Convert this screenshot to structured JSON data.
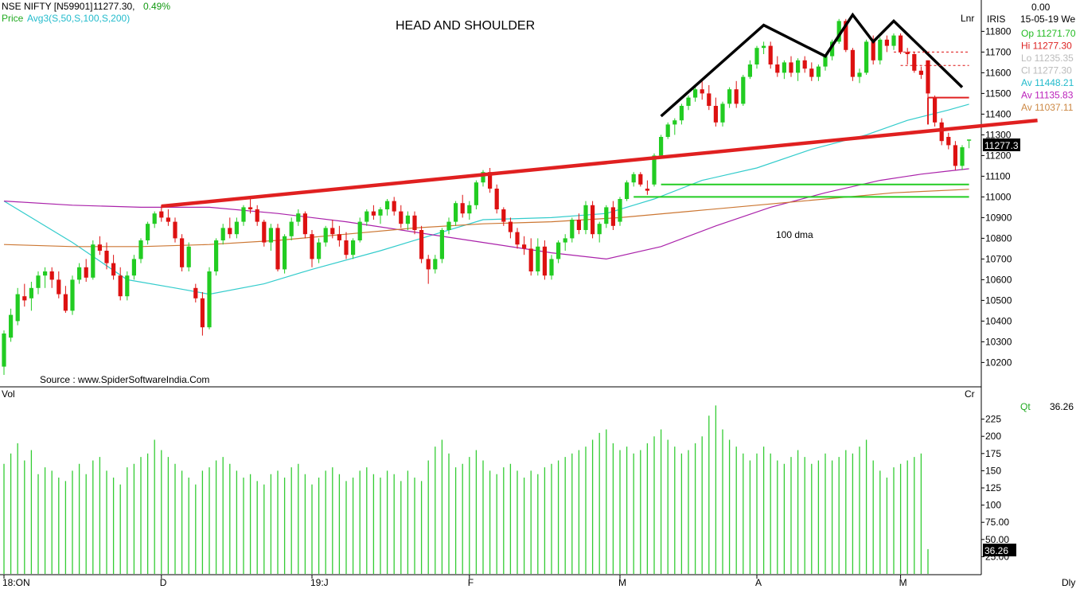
{
  "header": {
    "symbol": "NSE NIFTY [N59901]",
    "last": "11277.30,",
    "change": "0.49%",
    "price_label": "Price",
    "avg_label": "Avg3(S,50,S,100,S,200)",
    "title": "HEAD AND SHOULDER",
    "lnr": "Lnr",
    "source": "Source : www.SpiderSoftwareIndia.Com",
    "dma_note": "100 dma"
  },
  "info_panel": {
    "top_value": "0.00",
    "iris": "IRIS",
    "date": "15-05-19 We",
    "rows": [
      {
        "label": "Op 11271.70",
        "color": "#22bb22"
      },
      {
        "label": "Hi 11277.30",
        "color": "#dd2222"
      },
      {
        "label": "Lo 11235.35",
        "color": "#bbbbbb"
      },
      {
        "label": "Cl 11277.30",
        "color": "#bbbbbb"
      },
      {
        "label": "Av 11448.21",
        "color": "#22bbcc"
      },
      {
        "label": "Av 11135.83",
        "color": "#bb22bb"
      },
      {
        "label": "Av 11037.11",
        "color": "#cc8844"
      }
    ],
    "price_tag": "11277.3"
  },
  "volume_panel": {
    "vol_label": "Vol",
    "cr_label": "Cr",
    "qt_label": "Qt",
    "qt_value": "36.26",
    "vol_tag": "36.26"
  },
  "x_axis": {
    "labels": [
      {
        "text": "18:ON",
        "idx": 0
      },
      {
        "text": "D",
        "idx": 23
      },
      {
        "text": "19:J",
        "idx": 45
      },
      {
        "text": "F",
        "idx": 68
      },
      {
        "text": "M",
        "idx": 90
      },
      {
        "text": "A",
        "idx": 110
      },
      {
        "text": "M",
        "idx": 131
      }
    ],
    "dly": "Dly"
  },
  "colors": {
    "up": "#22cc22",
    "down": "#dd1111",
    "ma50": "#33cccc",
    "ma100": "#aa22aa",
    "ma200": "#cc7733",
    "trendline": "#e02020",
    "pattern": "#000000",
    "support": "#22cc22",
    "volume": "#33cc33"
  },
  "chart_data": {
    "type": "candlestick",
    "title": "HEAD AND SHOULDER",
    "y_ticks": [
      10200,
      10300,
      10400,
      10500,
      10600,
      10700,
      10800,
      10900,
      11000,
      11100,
      11200,
      11300,
      11400,
      11500,
      11600,
      11700,
      11800
    ],
    "ylim": [
      10090,
      11940
    ],
    "series_ohlc": [
      [
        10180,
        10355,
        10140,
        10340
      ],
      [
        10320,
        10460,
        10300,
        10430
      ],
      [
        10400,
        10560,
        10380,
        10530
      ],
      [
        10520,
        10580,
        10470,
        10500
      ],
      [
        10510,
        10590,
        10450,
        10560
      ],
      [
        10560,
        10640,
        10530,
        10620
      ],
      [
        10620,
        10660,
        10560,
        10640
      ],
      [
        10640,
        10660,
        10560,
        10600
      ],
      [
        10600,
        10640,
        10510,
        10530
      ],
      [
        10530,
        10570,
        10440,
        10450
      ],
      [
        10450,
        10620,
        10430,
        10600
      ],
      [
        10600,
        10680,
        10580,
        10660
      ],
      [
        10660,
        10700,
        10590,
        10610
      ],
      [
        10610,
        10790,
        10600,
        10770
      ],
      [
        10770,
        10810,
        10720,
        10740
      ],
      [
        10740,
        10780,
        10650,
        10680
      ],
      [
        10680,
        10720,
        10600,
        10620
      ],
      [
        10620,
        10660,
        10500,
        10520
      ],
      [
        10520,
        10640,
        10500,
        10620
      ],
      [
        10620,
        10720,
        10600,
        10700
      ],
      [
        10700,
        10800,
        10680,
        10790
      ],
      [
        10790,
        10880,
        10770,
        10870
      ],
      [
        10870,
        10930,
        10850,
        10920
      ],
      [
        10930,
        10960,
        10880,
        10900
      ],
      [
        10900,
        10940,
        10860,
        10880
      ],
      [
        10880,
        10900,
        10780,
        10800
      ],
      [
        10800,
        10820,
        10640,
        10660
      ],
      [
        10660,
        10780,
        10640,
        10760
      ],
      [
        10560,
        10580,
        10490,
        10510
      ],
      [
        10510,
        10540,
        10330,
        10370
      ],
      [
        10370,
        10660,
        10360,
        10640
      ],
      [
        10640,
        10800,
        10620,
        10790
      ],
      [
        10790,
        10870,
        10770,
        10850
      ],
      [
        10850,
        10900,
        10800,
        10820
      ],
      [
        10820,
        10900,
        10800,
        10880
      ],
      [
        10880,
        10960,
        10860,
        10950
      ],
      [
        10950,
        10990,
        10920,
        10940
      ],
      [
        10940,
        10960,
        10860,
        10880
      ],
      [
        10880,
        10890,
        10760,
        10780
      ],
      [
        10780,
        10870,
        10740,
        10850
      ],
      [
        10850,
        10870,
        10640,
        10650
      ],
      [
        10650,
        10820,
        10630,
        10810
      ],
      [
        10810,
        10900,
        10790,
        10880
      ],
      [
        10880,
        10940,
        10860,
        10920
      ],
      [
        10920,
        10930,
        10800,
        10820
      ],
      [
        10820,
        10840,
        10660,
        10700
      ],
      [
        10700,
        10800,
        10680,
        10780
      ],
      [
        10780,
        10860,
        10760,
        10850
      ],
      [
        10850,
        10890,
        10800,
        10820
      ],
      [
        10820,
        10860,
        10760,
        10790
      ],
      [
        10790,
        10830,
        10700,
        10720
      ],
      [
        10720,
        10800,
        10700,
        10790
      ],
      [
        10790,
        10900,
        10780,
        10880
      ],
      [
        10880,
        10940,
        10860,
        10930
      ],
      [
        10930,
        10960,
        10890,
        10910
      ],
      [
        10910,
        10950,
        10870,
        10940
      ],
      [
        10940,
        10990,
        10910,
        10980
      ],
      [
        10980,
        11000,
        10910,
        10930
      ],
      [
        10930,
        10960,
        10850,
        10870
      ],
      [
        10870,
        10930,
        10840,
        10910
      ],
      [
        10910,
        10930,
        10820,
        10840
      ],
      [
        10840,
        10860,
        10680,
        10700
      ],
      [
        10700,
        10720,
        10580,
        10650
      ],
      [
        10650,
        10720,
        10630,
        10700
      ],
      [
        10700,
        10850,
        10680,
        10840
      ],
      [
        10840,
        10900,
        10820,
        10880
      ],
      [
        10880,
        10980,
        10860,
        10970
      ],
      [
        10970,
        11010,
        10900,
        10920
      ],
      [
        10920,
        10980,
        10890,
        10960
      ],
      [
        10960,
        11080,
        10940,
        11070
      ],
      [
        11070,
        11130,
        11050,
        11120
      ],
      [
        11120,
        11140,
        11020,
        11040
      ],
      [
        11040,
        11060,
        10920,
        10940
      ],
      [
        10940,
        10950,
        10860,
        10880
      ],
      [
        10880,
        10900,
        10800,
        10830
      ],
      [
        10830,
        10850,
        10750,
        10770
      ],
      [
        10770,
        10810,
        10720,
        10750
      ],
      [
        10750,
        10800,
        10620,
        10640
      ],
      [
        10640,
        10800,
        10620,
        10760
      ],
      [
        10760,
        10790,
        10600,
        10620
      ],
      [
        10620,
        10720,
        10600,
        10700
      ],
      [
        10700,
        10790,
        10680,
        10780
      ],
      [
        10780,
        10820,
        10740,
        10800
      ],
      [
        10800,
        10900,
        10780,
        10890
      ],
      [
        10890,
        10920,
        10820,
        10840
      ],
      [
        10840,
        10980,
        10820,
        10960
      ],
      [
        10960,
        10980,
        10800,
        10820
      ],
      [
        10820,
        10880,
        10780,
        10870
      ],
      [
        10870,
        10960,
        10850,
        10950
      ],
      [
        10950,
        10980,
        10840,
        10860
      ],
      [
        10880,
        11000,
        10860,
        10990
      ],
      [
        10990,
        11080,
        10980,
        11070
      ],
      [
        11070,
        11120,
        11050,
        11110
      ],
      [
        11110,
        11120,
        11050,
        11060
      ],
      [
        11040,
        11080,
        11010,
        11030
      ],
      [
        11060,
        11210,
        11050,
        11200
      ],
      [
        11200,
        11300,
        11190,
        11290
      ],
      [
        11290,
        11360,
        11280,
        11350
      ],
      [
        11350,
        11380,
        11300,
        11370
      ],
      [
        11370,
        11450,
        11350,
        11440
      ],
      [
        11440,
        11490,
        11420,
        11480
      ],
      [
        11480,
        11530,
        11460,
        11520
      ],
      [
        11520,
        11560,
        11470,
        11500
      ],
      [
        11500,
        11540,
        11420,
        11440
      ],
      [
        11440,
        11480,
        11340,
        11360
      ],
      [
        11360,
        11460,
        11340,
        11450
      ],
      [
        11450,
        11530,
        11430,
        11520
      ],
      [
        11520,
        11560,
        11430,
        11450
      ],
      [
        11450,
        11590,
        11440,
        11580
      ],
      [
        11580,
        11660,
        11570,
        11640
      ],
      [
        11640,
        11730,
        11620,
        11720
      ],
      [
        11720,
        11750,
        11690,
        11730
      ],
      [
        11730,
        11750,
        11620,
        11640
      ],
      [
        11640,
        11680,
        11580,
        11600
      ],
      [
        11600,
        11660,
        11570,
        11650
      ],
      [
        11650,
        11680,
        11580,
        11600
      ],
      [
        11600,
        11670,
        11560,
        11660
      ],
      [
        11660,
        11680,
        11600,
        11620
      ],
      [
        11620,
        11650,
        11560,
        11580
      ],
      [
        11580,
        11640,
        11560,
        11630
      ],
      [
        11630,
        11690,
        11610,
        11680
      ],
      [
        11680,
        11760,
        11660,
        11750
      ],
      [
        11750,
        11860,
        11740,
        11850
      ],
      [
        11850,
        11860,
        11700,
        11710
      ],
      [
        11710,
        11720,
        11560,
        11580
      ],
      [
        11580,
        11620,
        11550,
        11600
      ],
      [
        11600,
        11760,
        11590,
        11750
      ],
      [
        11750,
        11780,
        11640,
        11660
      ],
      [
        11660,
        11770,
        11640,
        11760
      ],
      [
        11760,
        11780,
        11700,
        11730
      ],
      [
        11730,
        11790,
        11710,
        11780
      ],
      [
        11780,
        11790,
        11690,
        11700
      ],
      [
        11700,
        11720,
        11640,
        11690
      ],
      [
        11690,
        11700,
        11600,
        11610
      ],
      [
        11610,
        11630,
        11570,
        11590
      ],
      [
        11660,
        11660,
        11480,
        11500
      ],
      [
        11480,
        11490,
        11340,
        11360
      ],
      [
        11360,
        11380,
        11250,
        11270
      ],
      [
        11290,
        11310,
        11230,
        11250
      ],
      [
        11250,
        11270,
        11130,
        11150
      ],
      [
        11150,
        11250,
        11130,
        11240
      ],
      [
        11271.7,
        11277.3,
        11235.35,
        11277.3
      ]
    ],
    "volume": [
      160,
      175,
      190,
      165,
      180,
      145,
      155,
      150,
      140,
      135,
      150,
      160,
      145,
      165,
      170,
      150,
      140,
      130,
      155,
      160,
      170,
      175,
      195,
      180,
      170,
      160,
      150,
      140,
      130,
      150,
      155,
      165,
      170,
      160,
      150,
      140,
      145,
      135,
      130,
      145,
      150,
      140,
      155,
      160,
      145,
      130,
      140,
      150,
      155,
      145,
      135,
      140,
      150,
      155,
      145,
      140,
      150,
      145,
      135,
      150,
      140,
      135,
      165,
      185,
      195,
      175,
      155,
      160,
      170,
      180,
      165,
      150,
      145,
      155,
      160,
      150,
      140,
      150,
      145,
      155,
      160,
      165,
      170,
      175,
      180,
      185,
      195,
      205,
      210,
      190,
      180,
      185,
      175,
      180,
      190,
      200,
      210,
      195,
      185,
      175,
      180,
      190,
      200,
      230,
      245,
      210,
      195,
      185,
      175,
      165,
      175,
      185,
      175,
      165,
      160,
      170,
      180,
      170,
      160,
      165,
      175,
      165,
      170,
      180,
      175,
      185,
      195,
      165,
      150,
      140,
      155,
      160,
      165,
      170,
      175,
      36
    ],
    "volume_ticks": [
      25,
      50,
      75,
      100,
      125,
      150,
      175,
      200,
      225
    ],
    "volume_tick_labels": [
      "25.00",
      "50.00",
      "75.00",
      "100",
      "125",
      "150",
      "175",
      "200",
      "225"
    ],
    "volume_ylim": [
      0,
      250
    ],
    "ma50": [
      [
        0,
        10980
      ],
      [
        10,
        10780
      ],
      [
        18,
        10600
      ],
      [
        25,
        10560
      ],
      [
        30,
        10530
      ],
      [
        38,
        10580
      ],
      [
        45,
        10650
      ],
      [
        55,
        10740
      ],
      [
        62,
        10810
      ],
      [
        70,
        10890
      ],
      [
        80,
        10900
      ],
      [
        88,
        10920
      ],
      [
        95,
        10990
      ],
      [
        102,
        11080
      ],
      [
        110,
        11140
      ],
      [
        118,
        11230
      ],
      [
        126,
        11300
      ],
      [
        132,
        11370
      ],
      [
        138,
        11420
      ],
      [
        141,
        11448
      ]
    ],
    "ma100": [
      [
        0,
        10980
      ],
      [
        10,
        10960
      ],
      [
        20,
        10950
      ],
      [
        30,
        10950
      ],
      [
        40,
        10920
      ],
      [
        50,
        10880
      ],
      [
        60,
        10830
      ],
      [
        70,
        10780
      ],
      [
        80,
        10730
      ],
      [
        88,
        10700
      ],
      [
        96,
        10760
      ],
      [
        104,
        10860
      ],
      [
        112,
        10950
      ],
      [
        120,
        11020
      ],
      [
        128,
        11080
      ],
      [
        134,
        11110
      ],
      [
        138,
        11125
      ],
      [
        141,
        11136
      ]
    ],
    "ma200": [
      [
        0,
        10770
      ],
      [
        10,
        10760
      ],
      [
        20,
        10760
      ],
      [
        30,
        10770
      ],
      [
        40,
        10790
      ],
      [
        50,
        10820
      ],
      [
        60,
        10850
      ],
      [
        70,
        10870
      ],
      [
        80,
        10880
      ],
      [
        90,
        10900
      ],
      [
        100,
        10930
      ],
      [
        110,
        10960
      ],
      [
        120,
        10990
      ],
      [
        130,
        11020
      ],
      [
        141,
        11037
      ]
    ],
    "trendline": [
      [
        23,
        10955
      ],
      [
        151,
        11370
      ]
    ],
    "head_shoulder": [
      [
        96,
        11390
      ],
      [
        111,
        11830
      ],
      [
        120,
        11680
      ],
      [
        124,
        11880
      ],
      [
        127,
        11750
      ],
      [
        130,
        11850
      ],
      [
        140,
        11530
      ]
    ],
    "neckline_red_short": [
      [
        135,
        11480
      ],
      [
        141,
        11480
      ]
    ],
    "red_vertical": [
      [
        135,
        11480
      ],
      [
        135,
        11350
      ]
    ],
    "support_lines": [
      [
        [
          96,
          11060
        ],
        [
          141,
          11060
        ]
      ],
      [
        [
          92,
          11000
        ],
        [
          141,
          11000
        ]
      ]
    ],
    "dashed_levels": [
      [
        [
          130,
          11700
        ],
        [
          141,
          11700
        ]
      ],
      [
        [
          131,
          11635
        ],
        [
          141,
          11635
        ]
      ]
    ]
  }
}
